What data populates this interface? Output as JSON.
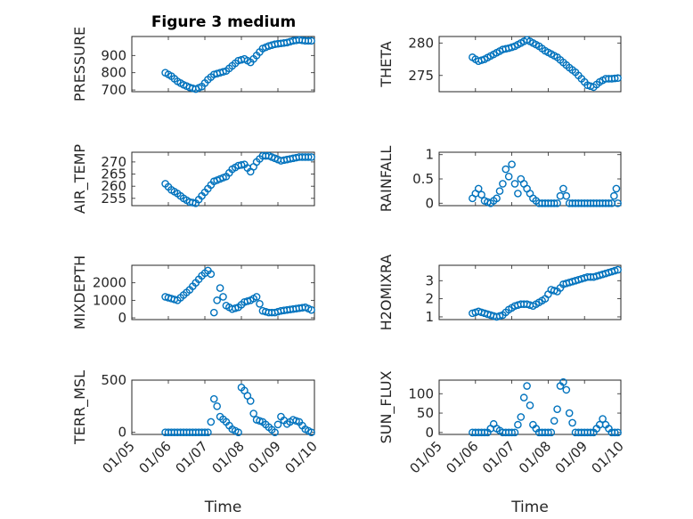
{
  "figure_title": "Figure 3 medium",
  "colors": {
    "marker": "#0072bd",
    "axes": "#262626",
    "grid": "#dcdcdc"
  },
  "x_tick_labels": [
    "01/05",
    "01/06",
    "01/07",
    "01/08",
    "01/09",
    "01/10"
  ],
  "chart_data": [
    {
      "type": "scatter",
      "ylabel": "PRESSURE",
      "xlabel": "",
      "xlim": [
        "01/05",
        "01/10"
      ],
      "ylim": [
        690,
        1010
      ],
      "yticks": [
        700,
        800,
        900
      ],
      "ytick_labels": [
        "700",
        "800",
        "900"
      ],
      "grid": true,
      "x": [
        "01/05 22:00",
        "01/06 02:00",
        "01/06 06:00",
        "01/06 10:00",
        "01/06 14:00",
        "01/06 18:00",
        "01/06 22:00",
        "01/07 02:00",
        "01/07 06:00",
        "01/07 10:00",
        "01/07 14:00",
        "01/07 18:00",
        "01/07 22:00",
        "01/08 02:00",
        "01/08 06:00",
        "01/08 10:00",
        "01/08 14:00",
        "01/08 18:00",
        "01/08 22:00",
        "01/09 02:00",
        "01/09 06:00",
        "01/09 10:00",
        "01/09 14:00",
        "01/09 18:00",
        "01/09 22:00"
      ],
      "y": [
        800,
        780,
        750,
        730,
        715,
        705,
        720,
        760,
        790,
        800,
        810,
        840,
        870,
        880,
        860,
        900,
        940,
        955,
        965,
        970,
        975,
        985,
        990,
        985,
        985
      ]
    },
    {
      "type": "scatter",
      "ylabel": "THETA",
      "xlabel": "",
      "xlim": [
        "01/05",
        "01/10"
      ],
      "ylim": [
        272.5,
        281
      ],
      "yticks": [
        275,
        280
      ],
      "ytick_labels": [
        "275",
        "280"
      ],
      "grid": true,
      "x": [
        "01/05 22:00",
        "01/06 02:00",
        "01/06 06:00",
        "01/06 10:00",
        "01/06 14:00",
        "01/06 18:00",
        "01/06 22:00",
        "01/07 02:00",
        "01/07 06:00",
        "01/07 10:00",
        "01/07 14:00",
        "01/07 18:00",
        "01/07 22:00",
        "01/08 02:00",
        "01/08 06:00",
        "01/08 10:00",
        "01/08 14:00",
        "01/08 18:00",
        "01/08 22:00",
        "01/09 02:00",
        "01/09 06:00",
        "01/09 10:00",
        "01/09 14:00",
        "01/09 18:00",
        "01/09 22:00"
      ],
      "y": [
        277.8,
        277.2,
        277.5,
        278,
        278.5,
        279,
        279.2,
        279.5,
        280,
        280.5,
        280,
        279.5,
        278.8,
        278.3,
        277.8,
        277,
        276.2,
        275.5,
        274.5,
        273.5,
        273.2,
        274,
        274.5,
        274.5,
        274.6
      ]
    },
    {
      "type": "scatter",
      "ylabel": "AIR_TEMP",
      "xlabel": "",
      "xlim": [
        "01/05",
        "01/10"
      ],
      "ylim": [
        252,
        274
      ],
      "yticks": [
        255,
        260,
        265,
        270
      ],
      "ytick_labels": [
        "255",
        "260",
        "265",
        "270"
      ],
      "grid": true,
      "x": [
        "01/05 22:00",
        "01/06 02:00",
        "01/06 06:00",
        "01/06 10:00",
        "01/06 14:00",
        "01/06 18:00",
        "01/06 22:00",
        "01/07 02:00",
        "01/07 06:00",
        "01/07 10:00",
        "01/07 14:00",
        "01/07 18:00",
        "01/07 22:00",
        "01/08 02:00",
        "01/08 06:00",
        "01/08 10:00",
        "01/08 14:00",
        "01/08 18:00",
        "01/08 22:00",
        "01/09 02:00",
        "01/09 06:00",
        "01/09 10:00",
        "01/09 14:00",
        "01/09 18:00",
        "01/09 22:00"
      ],
      "y": [
        261,
        258.5,
        257,
        255,
        253.5,
        253,
        256,
        259,
        262,
        263,
        264,
        267,
        268.5,
        269,
        266,
        270,
        272.5,
        272.5,
        271.5,
        270.5,
        271,
        271.5,
        272,
        272,
        272
      ]
    },
    {
      "type": "scatter",
      "ylabel": "RAINFALL",
      "xlabel": "",
      "xlim": [
        "01/05",
        "01/10"
      ],
      "ylim": [
        -0.05,
        1.05
      ],
      "yticks": [
        0,
        0.5,
        1
      ],
      "ytick_labels": [
        "0",
        "0.5",
        "1"
      ],
      "grid": true,
      "x": [
        "01/05 22:00",
        "01/06 02:00",
        "01/06 06:00",
        "01/06 10:00",
        "01/06 14:00",
        "01/06 18:00",
        "01/06 20:00",
        "01/06 22:00",
        "01/07 00:00",
        "01/07 02:00",
        "01/07 04:00",
        "01/07 06:00",
        "01/07 10:00",
        "01/07 14:00",
        "01/07 18:00",
        "01/07 22:00",
        "01/08 02:00",
        "01/08 06:00",
        "01/08 10:00",
        "01/08 14:00",
        "01/08 18:00",
        "01/08 22:00",
        "01/09 02:00",
        "01/09 06:00",
        "01/09 10:00",
        "01/09 14:00",
        "01/09 18:00",
        "01/09 21:00",
        "01/09 22:00"
      ],
      "y": [
        0.1,
        0.3,
        0.05,
        0,
        0.1,
        0.4,
        0.7,
        0.55,
        0.8,
        0.4,
        0.2,
        0.5,
        0.3,
        0.1,
        0,
        0,
        0,
        0,
        0.3,
        0,
        0,
        0,
        0,
        0,
        0,
        0,
        0,
        0.3,
        0
      ]
    },
    {
      "type": "scatter",
      "ylabel": "MIXDEPTH",
      "xlabel": "",
      "xlim": [
        "01/05",
        "01/10"
      ],
      "ylim": [
        -100,
        3000
      ],
      "yticks": [
        0,
        1000,
        2000
      ],
      "ytick_labels": [
        "0",
        "1000",
        "2000"
      ],
      "grid": true,
      "x": [
        "01/05 22:00",
        "01/06 02:00",
        "01/06 06:00",
        "01/06 10:00",
        "01/06 14:00",
        "01/06 18:00",
        "01/06 22:00",
        "01/07 02:00",
        "01/07 04:00",
        "01/07 06:00",
        "01/07 10:00",
        "01/07 14:00",
        "01/07 18:00",
        "01/07 22:00",
        "01/08 02:00",
        "01/08 06:00",
        "01/08 10:00",
        "01/08 14:00",
        "01/08 18:00",
        "01/08 22:00",
        "01/09 02:00",
        "01/09 06:00",
        "01/09 10:00",
        "01/09 14:00",
        "01/09 18:00",
        "01/09 22:00"
      ],
      "y": [
        1200,
        1100,
        1000,
        1300,
        1600,
        2000,
        2400,
        2700,
        2500,
        300,
        1700,
        700,
        500,
        600,
        900,
        1000,
        1200,
        400,
        300,
        300,
        400,
        450,
        500,
        550,
        600,
        450
      ]
    },
    {
      "type": "scatter",
      "ylabel": "H2OMIXRA",
      "xlabel": "",
      "xlim": [
        "01/05",
        "01/10"
      ],
      "ylim": [
        0.85,
        3.85
      ],
      "yticks": [
        1,
        2,
        3
      ],
      "ytick_labels": [
        "1",
        "2",
        "3"
      ],
      "grid": true,
      "x": [
        "01/05 22:00",
        "01/06 02:00",
        "01/06 06:00",
        "01/06 10:00",
        "01/06 14:00",
        "01/06 18:00",
        "01/06 22:00",
        "01/07 02:00",
        "01/07 06:00",
        "01/07 10:00",
        "01/07 14:00",
        "01/07 18:00",
        "01/07 22:00",
        "01/08 02:00",
        "01/08 06:00",
        "01/08 10:00",
        "01/08 14:00",
        "01/08 18:00",
        "01/08 22:00",
        "01/09 02:00",
        "01/09 06:00",
        "01/09 10:00",
        "01/09 14:00",
        "01/09 18:00",
        "01/09 22:00"
      ],
      "y": [
        1.2,
        1.3,
        1.2,
        1.1,
        1.0,
        1.1,
        1.4,
        1.6,
        1.7,
        1.7,
        1.6,
        1.8,
        2.0,
        2.5,
        2.4,
        2.8,
        2.9,
        3.0,
        3.1,
        3.2,
        3.2,
        3.3,
        3.4,
        3.5,
        3.6
      ]
    },
    {
      "type": "scatter",
      "ylabel": "TERR_MSL",
      "xlabel": "Time",
      "xlim": [
        "01/05",
        "01/10"
      ],
      "ylim": [
        -20,
        500
      ],
      "yticks": [
        0,
        500
      ],
      "ytick_labels": [
        "0",
        "500"
      ],
      "grid": true,
      "x": [
        "01/05 22:00",
        "01/06 02:00",
        "01/06 06:00",
        "01/06 10:00",
        "01/06 14:00",
        "01/06 18:00",
        "01/06 22:00",
        "01/07 02:00",
        "01/07 04:00",
        "01/07 06:00",
        "01/07 08:00",
        "01/07 10:00",
        "01/07 14:00",
        "01/07 18:00",
        "01/07 22:00",
        "01/08 00:00",
        "01/08 02:00",
        "01/08 04:00",
        "01/08 06:00",
        "01/08 08:00",
        "01/08 10:00",
        "01/08 14:00",
        "01/08 18:00",
        "01/08 22:00",
        "01/09 02:00",
        "01/09 06:00",
        "01/09 10:00",
        "01/09 14:00",
        "01/09 18:00",
        "01/09 22:00"
      ],
      "y": [
        0,
        0,
        0,
        0,
        0,
        0,
        0,
        0,
        100,
        320,
        250,
        150,
        100,
        30,
        0,
        430,
        400,
        350,
        300,
        180,
        120,
        100,
        50,
        0,
        150,
        80,
        120,
        100,
        30,
        0
      ]
    },
    {
      "type": "scatter",
      "ylabel": "SUN_FLUX",
      "xlabel": "Time",
      "xlim": [
        "01/05",
        "01/10"
      ],
      "ylim": [
        -5,
        135
      ],
      "yticks": [
        0,
        50,
        100
      ],
      "ytick_labels": [
        "0",
        "50",
        "100"
      ],
      "grid": true,
      "x": [
        "01/05 22:00",
        "01/06 02:00",
        "01/06 06:00",
        "01/06 08:00",
        "01/06 10:00",
        "01/06 12:00",
        "01/06 14:00",
        "01/06 18:00",
        "01/06 22:00",
        "01/07 02:00",
        "01/07 06:00",
        "01/07 08:00",
        "01/07 10:00",
        "01/07 12:00",
        "01/07 14:00",
        "01/07 18:00",
        "01/07 22:00",
        "01/08 02:00",
        "01/08 06:00",
        "01/08 08:00",
        "01/08 10:00",
        "01/08 12:00",
        "01/08 14:00",
        "01/08 18:00",
        "01/08 22:00",
        "01/09 02:00",
        "01/09 06:00",
        "01/09 10:00",
        "01/09 12:00",
        "01/09 14:00",
        "01/09 18:00",
        "01/09 22:00"
      ],
      "y": [
        0,
        0,
        0,
        0,
        10,
        22,
        10,
        0,
        0,
        0,
        40,
        90,
        120,
        70,
        20,
        0,
        0,
        0,
        60,
        120,
        130,
        110,
        50,
        0,
        0,
        0,
        0,
        20,
        35,
        20,
        0,
        0
      ]
    }
  ]
}
